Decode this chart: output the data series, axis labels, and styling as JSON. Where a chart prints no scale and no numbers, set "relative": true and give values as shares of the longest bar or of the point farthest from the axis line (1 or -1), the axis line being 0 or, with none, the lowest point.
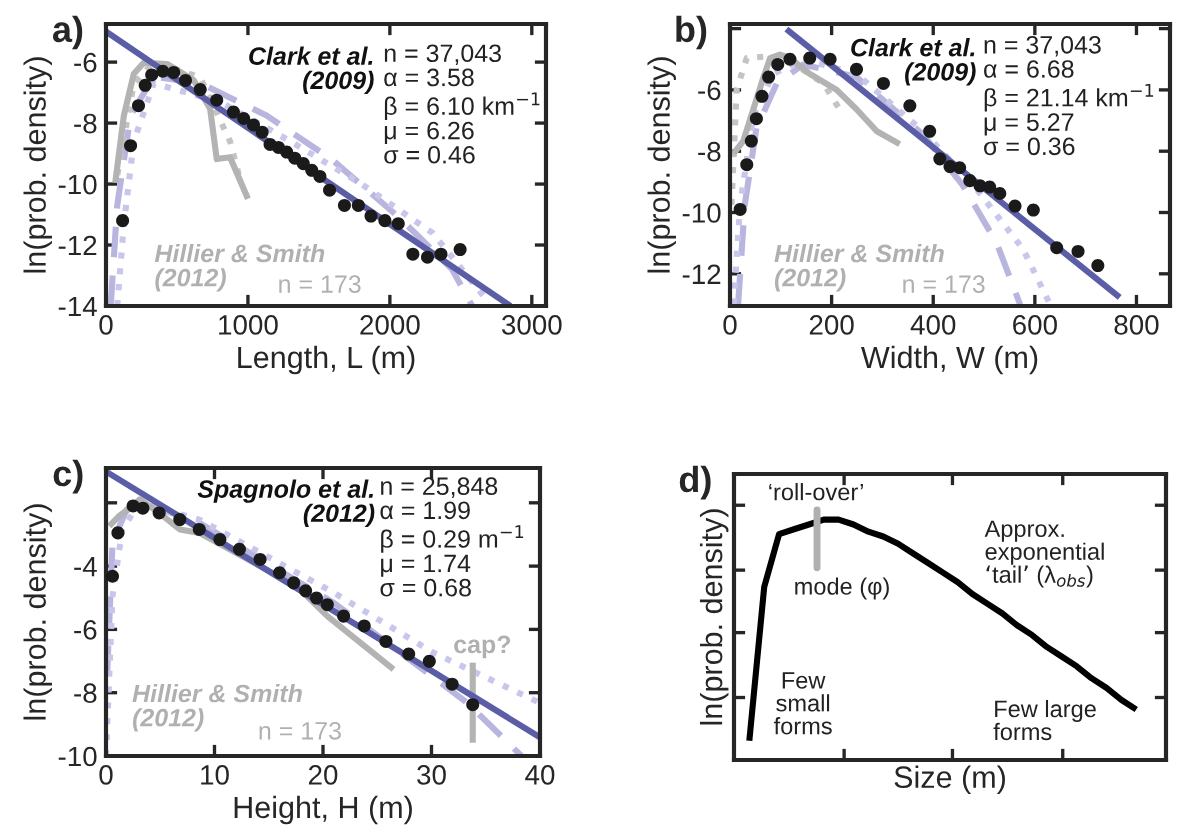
{
  "chart_data": [
    {
      "type": "line",
      "title": "a)",
      "xlabel": "Length, L (m)",
      "ylabel": "ln(prob. density)",
      "xlim": [
        0,
        3100
      ],
      "ylim": [
        -14,
        -4.75
      ],
      "xticks": [
        0,
        1000,
        2000,
        3000
      ],
      "yticks": [
        -6,
        -8,
        -10,
        -12,
        -14
      ],
      "legend": false,
      "grid": false,
      "annotations": [
        "Clark et al.\n(2009)",
        "n = 37,043\nα = 3.58\nβ = 6.10 km$^{−1}$\nμ = 6.26\nσ = 0.46",
        "Hillier & Smith\n(2012)",
        "n = 173"
      ],
      "series": [
        {
          "type": "line",
          "color": "#b8b5de",
          "line_style": "dashed",
          "x": [
            33,
            79,
            173,
            336,
            664,
            1131,
            1598,
            2066,
            2439,
            2580
          ],
          "values": [
            -14.0,
            -10.7,
            -7.75,
            -6.48,
            -6.69,
            -7.75,
            -9.22,
            -11.1,
            -12.8,
            -14.0
          ]
        },
        {
          "type": "line",
          "color": "#c8c6ea",
          "line_style": "dotted",
          "x": [
            79,
            126,
            196,
            336,
            804,
            1300,
            1800,
            2300,
            2700
          ],
          "values": [
            -14.0,
            -11.3,
            -8.6,
            -6.7,
            -7.3,
            -8.6,
            -10.0,
            -11.6,
            -13.9
          ]
        },
        {
          "type": "line",
          "color": "#c4c4c4",
          "line_style": "dotted",
          "x": [
            80,
            196,
            336,
            664,
            874,
            947
          ],
          "values": [
            -9.7,
            -6.7,
            -6.0,
            -6.5,
            -8.6,
            -9.9
          ]
        },
        {
          "type": "line",
          "color": "#b3b3b3",
          "line_style": "solid",
          "x": [
            65,
            126,
            196,
            266,
            430,
            617,
            734,
            780,
            874,
            1000
          ],
          "values": [
            -9.96,
            -7.75,
            -6.38,
            -6.02,
            -6.06,
            -6.59,
            -7.54,
            -9.18,
            -9.12,
            -10.48
          ]
        },
        {
          "type": "line",
          "color": "#5b5ea6",
          "line_style": "solid",
          "x": [
            0,
            2850
          ],
          "values": [
            -5.0,
            -14.0
          ]
        },
        {
          "type": "scatter",
          "color": "#1a1a1a",
          "marker": "circle",
          "x": [
            117,
            173,
            229,
            276,
            322,
            400,
            477,
            560,
            664,
            780,
            898,
            970,
            1039,
            1100,
            1156,
            1215,
            1273,
            1330,
            1390,
            1450,
            1507,
            1575,
            1680,
            1778,
            1867,
            1965,
            2059,
            2162,
            2265,
            2360,
            2495
          ],
          "values": [
            -11.2,
            -8.74,
            -7.43,
            -6.76,
            -6.42,
            -6.3,
            -6.34,
            -6.6,
            -6.9,
            -7.25,
            -7.64,
            -7.85,
            -8.06,
            -8.3,
            -8.7,
            -8.8,
            -8.95,
            -9.15,
            -9.33,
            -9.55,
            -9.75,
            -10.2,
            -10.7,
            -10.7,
            -11.05,
            -11.2,
            -11.3,
            -12.3,
            -12.4,
            -12.3,
            -12.15
          ]
        }
      ]
    },
    {
      "type": "line",
      "title": "b)",
      "xlabel": "Width, W (m)",
      "ylabel": "ln(prob. density)",
      "xlim": [
        0,
        866
      ],
      "ylim": [
        -13.05,
        -3.85
      ],
      "xticks": [
        0,
        200,
        400,
        600,
        800
      ],
      "yticks": [
        {
          "value": -4,
          "label": null
        },
        -6,
        -8,
        -10,
        -12
      ],
      "legend": false,
      "grid": false,
      "annotations": [
        "Clark et al.\n(2009)",
        "n = 37,043\nα = 6.68\nβ = 21.14 km$^{−1}$\nμ = 5.27\nσ = 0.36",
        "Hillier & Smith\n(2012)",
        "n = 173"
      ],
      "series": [
        {
          "type": "line",
          "color": "#b8b5de",
          "line_style": "dashed",
          "x": [
            16,
            29,
            52,
            92,
            144,
            249,
            380,
            459,
            525,
            571
          ],
          "values": [
            -13.0,
            -9.75,
            -7.25,
            -5.79,
            -5.17,
            -5.58,
            -7.46,
            -9.13,
            -11.0,
            -13.0
          ]
        },
        {
          "type": "line",
          "color": "#c8c6ea",
          "line_style": "dotted",
          "x": [
            7,
            20,
            46,
            85,
            144,
            249,
            380,
            485,
            577,
            630
          ],
          "values": [
            -13.0,
            -9.75,
            -6.83,
            -5.48,
            -5.0,
            -5.48,
            -7.35,
            -9.23,
            -11.2,
            -13.0
          ]
        },
        {
          "type": "line",
          "color": "#c4c4c4",
          "line_style": "dotted",
          "x": [
            3,
            13,
            33,
            66,
            118,
            184,
            223
          ],
          "values": [
            -9.75,
            -6.0,
            -4.96,
            -4.92,
            -5.06,
            -5.79,
            -6.83
          ]
        },
        {
          "type": "line",
          "color": "#b3b3b3",
          "line_style": "solid",
          "x": [
            7,
            26,
            66,
            79,
            98,
            118,
            157,
            210,
            249,
            289,
            334
          ],
          "values": [
            -8.08,
            -7.67,
            -5.58,
            -4.96,
            -4.85,
            -4.96,
            -5.48,
            -6.0,
            -6.63,
            -7.35,
            -7.77
          ]
        },
        {
          "type": "line",
          "color": "#5b5ea6",
          "line_style": "solid",
          "x": [
            111,
            767
          ],
          "values": [
            -4.02,
            -12.77
          ]
        },
        {
          "type": "scatter",
          "color": "#1a1a1a",
          "marker": "circle",
          "x": [
            20,
            33,
            42,
            52,
            63,
            76,
            94,
            118,
            157,
            197,
            249,
            302,
            354,
            393,
            413,
            433,
            452,
            472,
            492,
            511,
            531,
            561,
            597,
            643,
            685,
            724
          ],
          "values": [
            -9.9,
            -8.44,
            -7.67,
            -6.94,
            -6.21,
            -5.58,
            -5.17,
            -5.0,
            -4.96,
            -5.0,
            -5.33,
            -5.79,
            -6.52,
            -7.35,
            -8.25,
            -8.5,
            -8.54,
            -8.96,
            -9.13,
            -9.17,
            -9.38,
            -9.79,
            -9.92,
            -11.15,
            -11.27,
            -11.73
          ]
        }
      ]
    },
    {
      "type": "line",
      "title": "c)",
      "xlabel": "Height, H (m)",
      "ylabel": "ln(prob. density)",
      "xlim": [
        0,
        40
      ],
      "ylim": [
        -10,
        -0.9
      ],
      "xticks": [
        0,
        10,
        20,
        30,
        40
      ],
      "yticks": [
        {
          "value": -2,
          "label": null
        },
        -4,
        -6,
        -8,
        -10
      ],
      "legend": false,
      "grid": false,
      "annotations": [
        "Spagnolo et al.\n(2012)",
        "n = 25,848\nα = 1.99\nβ = 0.29 m$^{−1}$\nμ = 1.74\nσ = 0.68",
        "Hillier & Smith\n(2012)",
        "n = 173",
        "cap?"
      ],
      "series": [
        {
          "type": "line",
          "color": "#b8b5de",
          "line_style": "dashed",
          "x": [
            0.1,
            0.6,
            1.9,
            3.4,
            8.6,
            21.0,
            33.3,
            38.3
          ],
          "values": [
            -7.47,
            -3.26,
            -2.21,
            -2.0,
            -2.63,
            -5.16,
            -8.32,
            -10.0
          ]
        },
        {
          "type": "line",
          "color": "#c8c6ea",
          "line_style": "dotted",
          "x": [
            0,
            0.6,
            1.5,
            3.1,
            8.6,
            21.0,
            30.2,
            40
          ],
          "values": [
            -10.0,
            -4.95,
            -2.84,
            -2.0,
            -2.53,
            -4.84,
            -6.74,
            -8.32
          ]
        },
        {
          "type": "line",
          "color": "#b3b3b3",
          "line_style": "solid",
          "x": [
            0.3,
            1.2,
            2.5,
            3.1,
            4.9,
            6.8,
            8.6,
            14.8,
            17.9,
            20.4,
            26.5
          ],
          "values": [
            -2.74,
            -2.42,
            -2.1,
            -1.89,
            -2.32,
            -2.84,
            -2.95,
            -4.11,
            -4.74,
            -5.58,
            -7.26
          ]
        },
        {
          "type": "line",
          "color": "#b3b3b3",
          "line_style": "solid",
          "x": [
            33.8,
            33.8
          ],
          "values": [
            -7.05,
            -9.58
          ]
        },
        {
          "type": "line",
          "color": "#5b5ea6",
          "line_style": "solid",
          "x": [
            0,
            40
          ],
          "values": [
            -1.01,
            -9.41
          ]
        },
        {
          "type": "scatter",
          "color": "#1a1a1a",
          "marker": "circle",
          "x": [
            0.6,
            1.1,
            2.5,
            3.4,
            4.9,
            6.8,
            8.6,
            10.5,
            12.3,
            14.2,
            16.0,
            17.3,
            18.4,
            19.4,
            20.4,
            21.9,
            23.8,
            25.8,
            27.9,
            29.8,
            31.9,
            33.8
          ],
          "values": [
            -4.32,
            -2.95,
            -2.1,
            -2.17,
            -2.32,
            -2.53,
            -2.84,
            -3.16,
            -3.47,
            -3.79,
            -4.21,
            -4.53,
            -4.78,
            -5.01,
            -5.22,
            -5.58,
            -5.89,
            -6.38,
            -6.78,
            -7.01,
            -7.73,
            -8.38
          ]
        }
      ]
    },
    {
      "type": "line",
      "relative": true,
      "title": "d)",
      "xlabel": "Size (m)",
      "ylabel": "ln(prob. density)",
      "tick_labels": false,
      "legend": false,
      "grid": false,
      "categories": [
        null,
        null,
        null,
        null,
        null,
        null,
        null,
        null,
        null,
        null,
        null,
        null,
        null,
        null,
        null,
        null,
        null,
        null,
        null,
        null,
        null,
        null,
        null,
        null,
        null,
        null,
        null
      ],
      "annotations": [
        "‘roll-over’",
        "mode (φ)",
        "Approx.\nexponential\n‘tail’ (λ$_{obs}$)",
        "Few\nsmall\nforms",
        "Few large\nforms"
      ],
      "series": [
        {
          "color": "#000000",
          "line_style": "solid",
          "values": [
            0.08,
            0.72,
            0.94,
            0.96,
            0.98,
            1.0,
            1.0,
            0.98,
            0.95,
            0.93,
            0.9,
            0.86,
            0.82,
            0.78,
            0.74,
            0.69,
            0.65,
            0.61,
            0.56,
            0.52,
            0.47,
            0.43,
            0.39,
            0.34,
            0.3,
            0.25,
            0.21
          ]
        }
      ]
    }
  ]
}
